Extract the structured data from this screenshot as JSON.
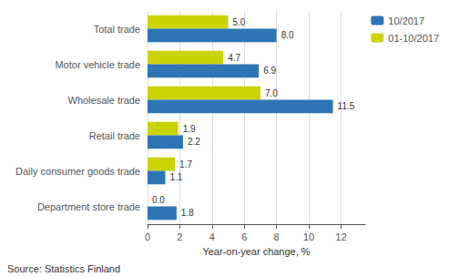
{
  "chart_data": {
    "type": "bar",
    "orientation": "horizontal",
    "categories": [
      "Department store trade",
      "Daily consumer goods trade",
      "Retail trade",
      "Wholesale trade",
      "Motor vehicle trade",
      "Total trade"
    ],
    "series": [
      {
        "name": "10/2017",
        "color": "#2E75B6",
        "values": [
          1.8,
          1.1,
          2.2,
          11.5,
          6.9,
          8.0
        ],
        "value_labels": [
          "1.8",
          "1.1",
          "2.2",
          "11.5",
          "6.9",
          "8.0"
        ]
      },
      {
        "name": "01-10/2017",
        "color": "#C9D400",
        "values": [
          0.0,
          1.7,
          1.9,
          7.0,
          4.7,
          5.0
        ],
        "value_labels": [
          "0.0",
          "1.7",
          "1.9",
          "7.0",
          "4.7",
          "5.0"
        ]
      }
    ],
    "xlabel": "Year-on-year change, %",
    "xlim": [
      0,
      13.5
    ],
    "xticks": [
      0,
      2,
      4,
      6,
      8,
      10,
      12
    ],
    "grid": true,
    "legend": "right",
    "data_labels": true,
    "annotations": [
      "Source: Statistics Finland"
    ]
  }
}
